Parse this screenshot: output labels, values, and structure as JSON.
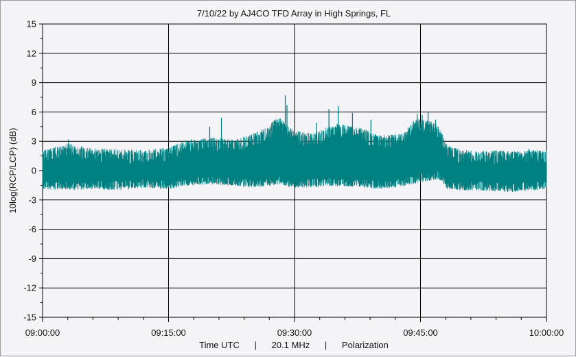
{
  "chart_data": {
    "type": "line",
    "title": "7/10/22  by  AJ4CO TFD Array  in  High Springs, FL",
    "ylabel": "10log(RCP/LCP) (dB)",
    "xlabel": "Time UTC      |      20.1 MHz      |      Polarization",
    "ylim": [
      -15,
      15
    ],
    "yticks": [
      "15",
      "12",
      "9",
      "6",
      "3",
      "0",
      "-3",
      "-6",
      "-9",
      "-12",
      "-15"
    ],
    "xlim_minutes": [
      0,
      60
    ],
    "xticks": [
      "09:00:00",
      "09:15:00",
      "09:30:00",
      "09:45:00",
      "10:00:00"
    ],
    "grid": true,
    "series": [
      {
        "color": "#008080",
        "envelope": {
          "x_minutes": [
            0,
            3,
            6,
            9,
            12,
            15,
            17,
            20,
            23,
            25,
            27,
            28,
            30,
            32,
            35,
            38,
            40,
            43,
            44,
            45,
            47,
            48.2,
            50,
            53,
            56,
            58,
            60
          ],
          "upper": [
            1.5,
            2.2,
            1.7,
            1.6,
            1.5,
            1.8,
            2.5,
            2.8,
            2.6,
            3.2,
            4.0,
            5.0,
            3.5,
            3.2,
            4.2,
            3.8,
            3.0,
            3.2,
            4.5,
            4.8,
            4.2,
            2.0,
            1.5,
            1.5,
            1.4,
            1.5,
            1.5
          ],
          "lower": [
            -1.5,
            -1.6,
            -1.5,
            -1.6,
            -1.4,
            -1.5,
            -1.2,
            -1.0,
            -1.2,
            -1.3,
            -1.2,
            -1.0,
            -1.4,
            -1.3,
            -1.2,
            -1.3,
            -1.5,
            -1.2,
            -1.0,
            -0.8,
            -0.5,
            -1.5,
            -1.6,
            -1.7,
            -1.8,
            -1.6,
            -1.6
          ]
        },
        "spikes": [
          {
            "x_minutes": 3.1,
            "y": 3.2
          },
          {
            "x_minutes": 17.7,
            "y": 3.2
          },
          {
            "x_minutes": 19.9,
            "y": 4.5
          },
          {
            "x_minutes": 21.3,
            "y": 5.4
          },
          {
            "x_minutes": 28.0,
            "y": 4.4
          },
          {
            "x_minutes": 28.9,
            "y": 7.7
          },
          {
            "x_minutes": 29.1,
            "y": 6.7
          },
          {
            "x_minutes": 32.6,
            "y": 4.9
          },
          {
            "x_minutes": 34.1,
            "y": 6.3
          },
          {
            "x_minutes": 35.2,
            "y": 6.6
          },
          {
            "x_minutes": 36.9,
            "y": 5.9
          },
          {
            "x_minutes": 39.1,
            "y": 5.2
          },
          {
            "x_minutes": 44.6,
            "y": 5.8
          },
          {
            "x_minutes": 45.2,
            "y": 5.7
          },
          {
            "x_minutes": 45.9,
            "y": 6.0
          },
          {
            "x_minutes": 46.8,
            "y": 5.2
          },
          {
            "x_minutes": 57.9,
            "y": 2.2
          }
        ]
      }
    ]
  }
}
